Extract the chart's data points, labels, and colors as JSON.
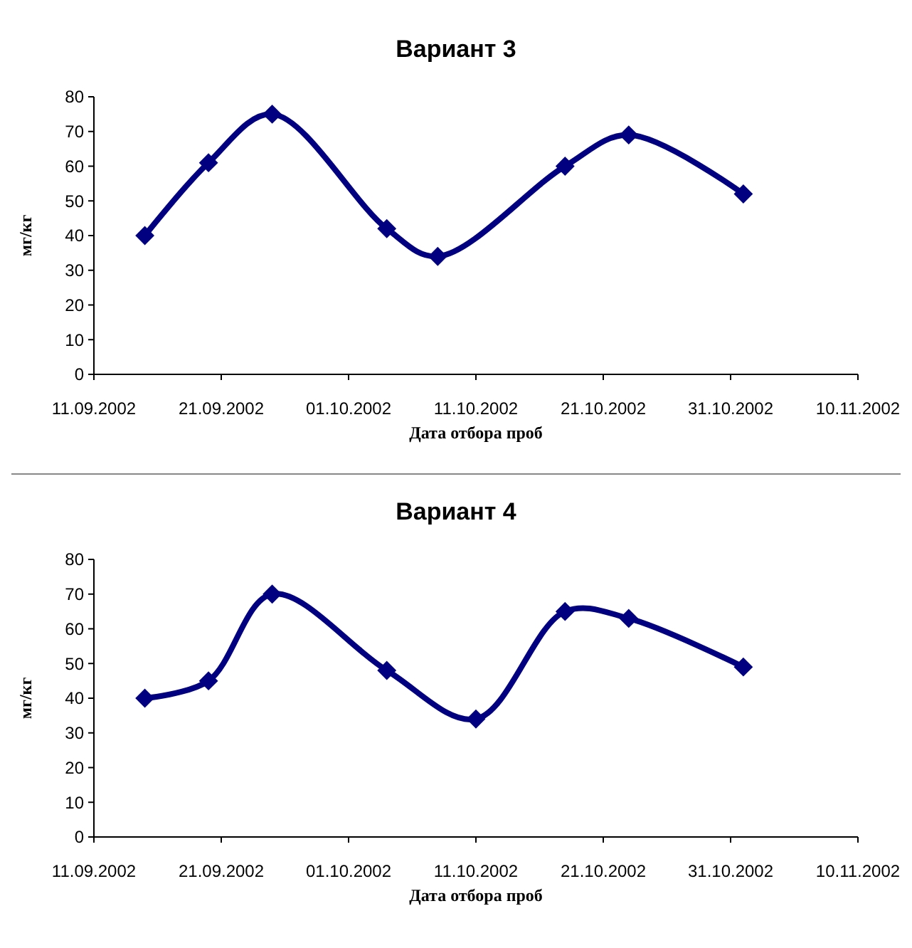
{
  "chart_data": [
    {
      "type": "line",
      "title": "Вариант 3",
      "xlabel": "Дата отбора проб",
      "ylabel": "мг/кг",
      "marker": "diamond",
      "line_style": "solid",
      "grid": false,
      "x": [
        "2002-09-15",
        "2002-09-20",
        "2002-09-25",
        "2002-10-04",
        "2002-10-08",
        "2002-10-18",
        "2002-10-23",
        "2002-11-01"
      ],
      "series": [
        {
          "color": "#000080",
          "values": [
            40,
            61,
            75,
            42,
            34,
            60,
            69,
            52
          ]
        }
      ],
      "xlim": [
        "2002-09-11",
        "2002-11-10"
      ],
      "xticks": [
        {
          "value": "2002-09-11",
          "label": "11.09.2002"
        },
        {
          "value": "2002-09-21",
          "label": "21.09.2002"
        },
        {
          "value": "2002-10-01",
          "label": "01.10.2002"
        },
        {
          "value": "2002-10-11",
          "label": "11.10.2002"
        },
        {
          "value": "2002-10-21",
          "label": "21.10.2002"
        },
        {
          "value": "2002-10-31",
          "label": "31.10.2002"
        },
        {
          "value": "2002-11-10",
          "label": "10.11.2002"
        }
      ],
      "ylim": [
        0,
        80
      ],
      "yticks": [
        0,
        10,
        20,
        30,
        40,
        50,
        60,
        70,
        80
      ]
    },
    {
      "type": "line",
      "title": "Вариант 4",
      "xlabel": "Дата отбора проб",
      "ylabel": "мг/кг",
      "marker": "diamond",
      "line_style": "solid",
      "grid": false,
      "x": [
        "2002-09-15",
        "2002-09-20",
        "2002-09-25",
        "2002-10-04",
        "2002-10-11",
        "2002-10-18",
        "2002-10-23",
        "2002-11-01"
      ],
      "series": [
        {
          "color": "#000080",
          "values": [
            40,
            45,
            70,
            48,
            34,
            65,
            63,
            49
          ]
        }
      ],
      "xlim": [
        "2002-09-11",
        "2002-11-10"
      ],
      "xticks": [
        {
          "value": "2002-09-11",
          "label": "11.09.2002"
        },
        {
          "value": "2002-09-21",
          "label": "21.09.2002"
        },
        {
          "value": "2002-10-01",
          "label": "01.10.2002"
        },
        {
          "value": "2002-10-11",
          "label": "11.10.2002"
        },
        {
          "value": "2002-10-21",
          "label": "21.10.2002"
        },
        {
          "value": "2002-10-31",
          "label": "31.10.2002"
        },
        {
          "value": "2002-11-10",
          "label": "10.11.2002"
        }
      ],
      "ylim": [
        0,
        80
      ],
      "yticks": [
        0,
        10,
        20,
        30,
        40,
        50,
        60,
        70,
        80
      ]
    }
  ]
}
